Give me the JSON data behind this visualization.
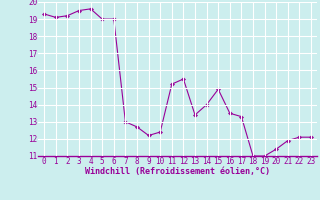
{
  "x": [
    0,
    1,
    2,
    3,
    4,
    5,
    6,
    7,
    8,
    9,
    10,
    11,
    12,
    13,
    14,
    15,
    16,
    17,
    18,
    19,
    20,
    21,
    22,
    23
  ],
  "y": [
    19.3,
    19.1,
    19.2,
    19.5,
    19.6,
    19.0,
    19.0,
    13.0,
    12.7,
    12.2,
    12.4,
    15.2,
    15.5,
    13.4,
    14.0,
    14.9,
    13.5,
    13.3,
    11.0,
    11.0,
    11.4,
    11.9,
    12.1,
    12.1
  ],
  "line_color": "#990099",
  "marker": "D",
  "marker_size": 2,
  "bg_color": "#cceeee",
  "grid_color": "#aadddd",
  "xlabel": "Windchill (Refroidissement éolien,°C)",
  "tick_color": "#990099",
  "ylim": [
    11,
    20
  ],
  "xlim": [
    -0.5,
    23.5
  ],
  "yticks": [
    11,
    12,
    13,
    14,
    15,
    16,
    17,
    18,
    19,
    20
  ],
  "xticks": [
    0,
    1,
    2,
    3,
    4,
    5,
    6,
    7,
    8,
    9,
    10,
    11,
    12,
    13,
    14,
    15,
    16,
    17,
    18,
    19,
    20,
    21,
    22,
    23
  ],
  "tick_fontsize": 5.5,
  "xlabel_fontsize": 6.0
}
